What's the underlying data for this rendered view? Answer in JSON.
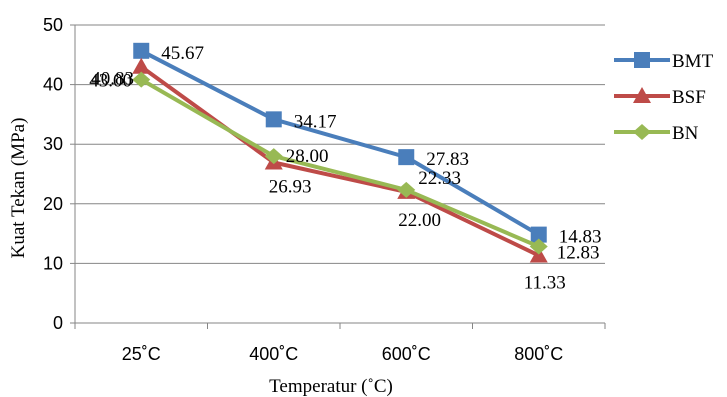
{
  "chart_data": {
    "type": "line",
    "title": "",
    "xlabel": "Temperatur (˚C)",
    "ylabel": "Kuat Tekan (MPa)",
    "categories": [
      "25˚C",
      "400˚C",
      "600˚C",
      "800˚C"
    ],
    "ylim": [
      0,
      50
    ],
    "yticks": [
      0,
      10,
      20,
      30,
      40,
      50
    ],
    "grid": "horizontal",
    "legend": "right",
    "series": [
      {
        "name": "BMT",
        "color": "#4a7ebb",
        "marker": "square",
        "values": [
          45.67,
          34.17,
          27.83,
          14.83
        ],
        "labels": [
          "45.67",
          "34.17",
          "27.83",
          "14.83"
        ]
      },
      {
        "name": "BSF",
        "color": "#be4b48",
        "marker": "triangle",
        "values": [
          43.0,
          26.93,
          22.0,
          11.33
        ],
        "labels": [
          "43.00",
          "26.93",
          "22.00",
          "11.33"
        ]
      },
      {
        "name": "BN",
        "color": "#98b954",
        "marker": "diamond",
        "values": [
          40.83,
          28.0,
          22.33,
          12.83
        ],
        "labels": [
          "40.83",
          "28.00",
          "22.33",
          "12.83"
        ]
      }
    ]
  }
}
